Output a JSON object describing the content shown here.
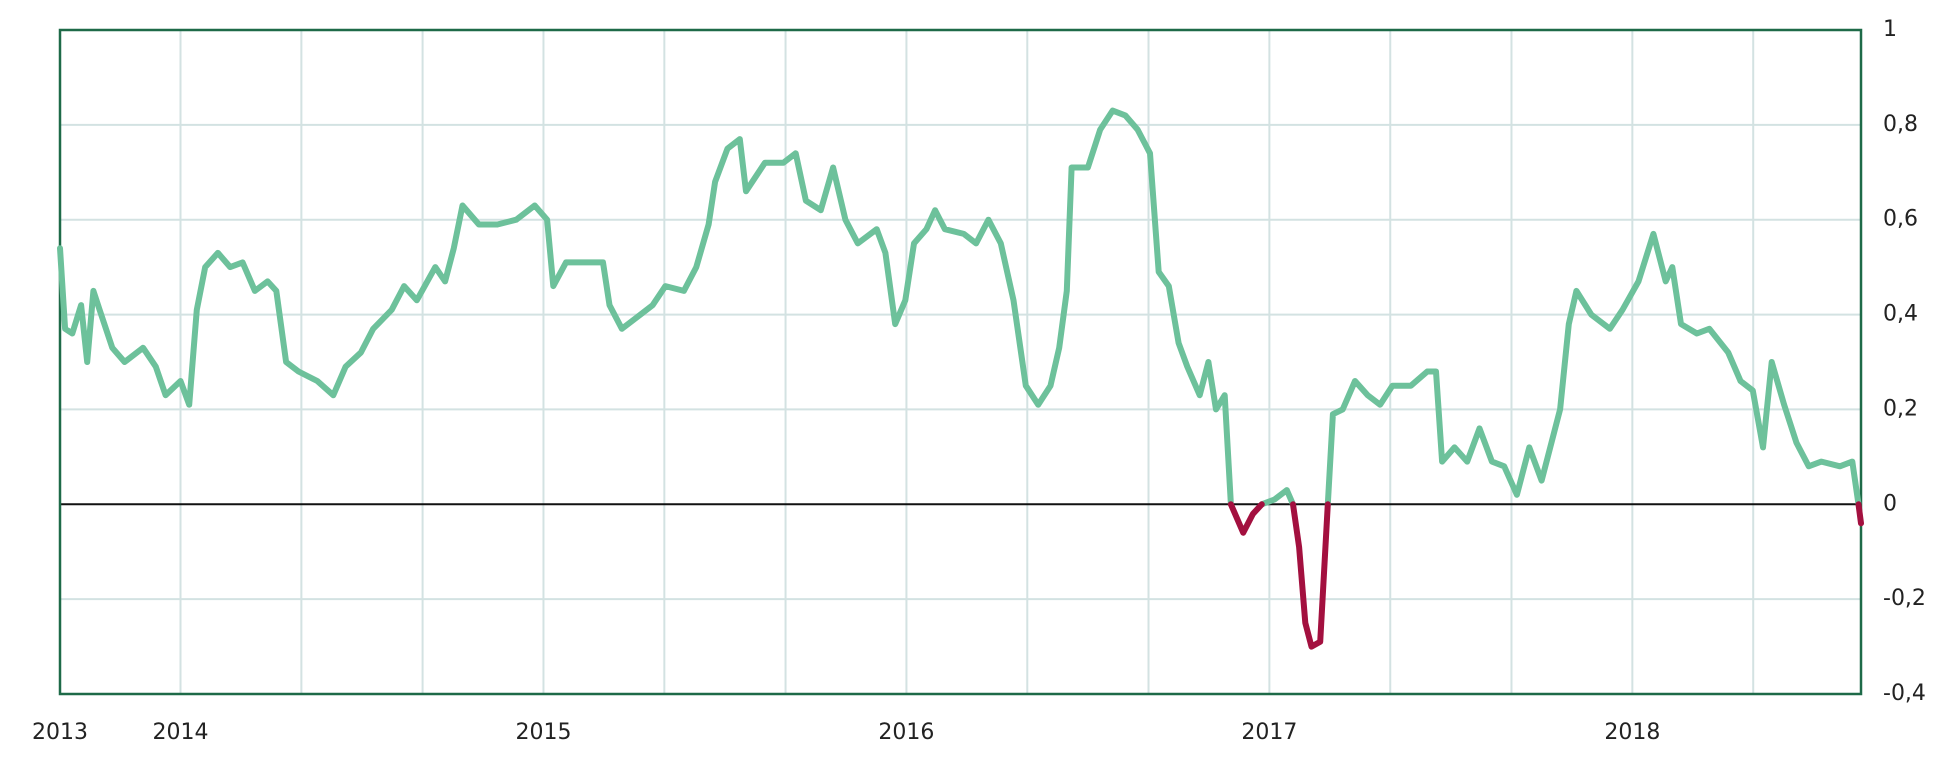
{
  "chart_data": {
    "type": "line",
    "x": [
      2013.668,
      2013.682,
      2013.702,
      2013.726,
      2013.743,
      2013.76,
      2013.777,
      2013.812,
      2013.846,
      2013.897,
      2013.932,
      2013.959,
      2014,
      2014.024,
      2014.045,
      2014.068,
      2014.103,
      2014.137,
      2014.171,
      2014.205,
      2014.24,
      2014.264,
      2014.291,
      2014.325,
      2014.377,
      2014.421,
      2014.455,
      2014.497,
      2014.531,
      2014.582,
      2014.616,
      2014.651,
      2014.702,
      2014.729,
      2014.753,
      2014.777,
      2014.822,
      2014.873,
      2014.925,
      2014.976,
      2015.01,
      2015.027,
      2015.062,
      2015.113,
      2015.164,
      2015.182,
      2015.216,
      2015.267,
      2015.301,
      2015.336,
      2015.387,
      2015.421,
      2015.455,
      2015.473,
      2015.507,
      2015.541,
      2015.558,
      2015.61,
      2015.661,
      2015.695,
      2015.723,
      2015.764,
      2015.798,
      2015.832,
      2015.866,
      2015.918,
      2015.942,
      2015.969,
      2015.997,
      2016.021,
      2016.055,
      2016.079,
      2016.106,
      2016.158,
      2016.192,
      2016.226,
      2016.26,
      2016.295,
      2016.329,
      2016.363,
      2016.397,
      2016.421,
      2016.442,
      2016.455,
      2016.5,
      2016.534,
      2016.568,
      2016.603,
      2016.637,
      2016.671,
      2016.695,
      2016.723,
      2016.75,
      2016.774,
      2016.808,
      2016.832,
      2016.853,
      2016.877,
      2016.894,
      2016.928,
      2016.955,
      2016.979,
      2017.014,
      2017.048,
      2017.065,
      2017.082,
      2017.099,
      2017.116,
      2017.14,
      2017.161,
      2017.175,
      2017.202,
      2017.236,
      2017.271,
      2017.305,
      2017.339,
      2017.39,
      2017.435,
      2017.459,
      2017.476,
      2017.51,
      2017.545,
      2017.579,
      2017.613,
      2017.647,
      2017.682,
      2017.716,
      2017.75,
      2017.801,
      2017.825,
      2017.846,
      2017.887,
      2017.938,
      2017.973,
      2018.017,
      2018.058,
      2018.092,
      2018.11,
      2018.134,
      2018.178,
      2018.212,
      2018.264,
      2018.298,
      2018.332,
      2018.36,
      2018.384,
      2018.418,
      2018.452,
      2018.486,
      2018.521,
      2018.572,
      2018.606,
      2018.623,
      2018.63
    ],
    "series": [
      {
        "color": "#6dc19b",
        "values": [
          0.54,
          0.37,
          0.36,
          0.42,
          0.3,
          0.45,
          0.41,
          0.33,
          0.3,
          0.33,
          0.29,
          0.23,
          0.26,
          0.21,
          0.41,
          0.5,
          0.53,
          0.5,
          0.51,
          0.45,
          0.47,
          0.45,
          0.3,
          0.28,
          0.26,
          0.23,
          0.29,
          0.32,
          0.37,
          0.41,
          0.46,
          0.43,
          0.5,
          0.47,
          0.54,
          0.63,
          0.59,
          0.59,
          0.6,
          0.63,
          0.6,
          0.46,
          0.51,
          0.51,
          0.51,
          0.42,
          0.37,
          0.4,
          0.42,
          0.46,
          0.45,
          0.5,
          0.59,
          0.68,
          0.75,
          0.77,
          0.66,
          0.72,
          0.72,
          0.74,
          0.64,
          0.62,
          0.71,
          0.6,
          0.55,
          0.58,
          0.53,
          0.38,
          0.43,
          0.55,
          0.58,
          0.62,
          0.58,
          0.57,
          0.55,
          0.6,
          0.55,
          0.43,
          0.25,
          0.21,
          0.25,
          0.33,
          0.45,
          0.71,
          0.71,
          0.79,
          0.83,
          0.82,
          0.79,
          0.74,
          0.49,
          0.46,
          0.34,
          0.29,
          0.23,
          0.3,
          0.2,
          0.23,
          0,
          null,
          null,
          0,
          0.01,
          0.03,
          0,
          null,
          null,
          null,
          null,
          0,
          0.19,
          0.2,
          0.26,
          0.23,
          0.21,
          0.25,
          0.25,
          0.28,
          0.28,
          0.09,
          0.12,
          0.09,
          0.16,
          0.09,
          0.08,
          0.02,
          0.12,
          0.05,
          0.2,
          0.38,
          0.45,
          0.4,
          0.37,
          0.41,
          0.47,
          0.57,
          0.47,
          0.5,
          0.38,
          0.36,
          0.37,
          0.32,
          0.26,
          0.24,
          0.12,
          0.3,
          0.21,
          0.13,
          0.08,
          0.09,
          0.08,
          0.09,
          0,
          null
        ]
      },
      {
        "color": "#a3103f",
        "values": [
          null,
          null,
          null,
          null,
          null,
          null,
          null,
          null,
          null,
          null,
          null,
          null,
          null,
          null,
          null,
          null,
          null,
          null,
          null,
          null,
          null,
          null,
          null,
          null,
          null,
          null,
          null,
          null,
          null,
          null,
          null,
          null,
          null,
          null,
          null,
          null,
          null,
          null,
          null,
          null,
          null,
          null,
          null,
          null,
          null,
          null,
          null,
          null,
          null,
          null,
          null,
          null,
          null,
          null,
          null,
          null,
          null,
          null,
          null,
          null,
          null,
          null,
          null,
          null,
          null,
          null,
          null,
          null,
          null,
          null,
          null,
          null,
          null,
          null,
          null,
          null,
          null,
          null,
          null,
          null,
          null,
          null,
          null,
          null,
          null,
          null,
          null,
          null,
          null,
          null,
          null,
          null,
          null,
          null,
          null,
          null,
          null,
          null,
          0,
          -0.06,
          -0.02,
          0,
          null,
          null,
          0,
          -0.09,
          -0.25,
          -0.3,
          -0.29,
          0,
          null,
          null,
          null,
          null,
          null,
          null,
          null,
          null,
          null,
          null,
          null,
          null,
          null,
          null,
          null,
          null,
          null,
          null,
          null,
          null,
          null,
          null,
          null,
          null,
          null,
          null,
          null,
          null,
          null,
          null,
          null,
          null,
          null,
          null,
          null,
          null,
          null,
          null,
          null,
          null,
          null,
          null,
          0,
          -0.04
        ]
      }
    ],
    "xlim": [
      2013.668,
      2018.63
    ],
    "xticks": [
      {
        "value": 2013.668,
        "label": "2013"
      },
      2014,
      2015,
      2016,
      2017,
      2018
    ],
    "xgrid": [
      2014,
      2014.333,
      2014.667,
      2015,
      2015.333,
      2015.667,
      2016,
      2016.333,
      2016.667,
      2017,
      2017.333,
      2017.667,
      2018,
      2018.333
    ],
    "ylim": [
      -0.4,
      1
    ],
    "yticks": [
      {
        "value": -0.4,
        "label": "-0,4"
      },
      {
        "value": -0.2,
        "label": "-0,2"
      },
      0,
      {
        "value": 0.2,
        "label": "0,2"
      },
      {
        "value": 0.4,
        "label": "0,4"
      },
      {
        "value": 0.6,
        "label": "0,6"
      },
      {
        "value": 0.8,
        "label": "0,8"
      },
      1
    ],
    "y_axis_side": "right",
    "grid": true
  }
}
